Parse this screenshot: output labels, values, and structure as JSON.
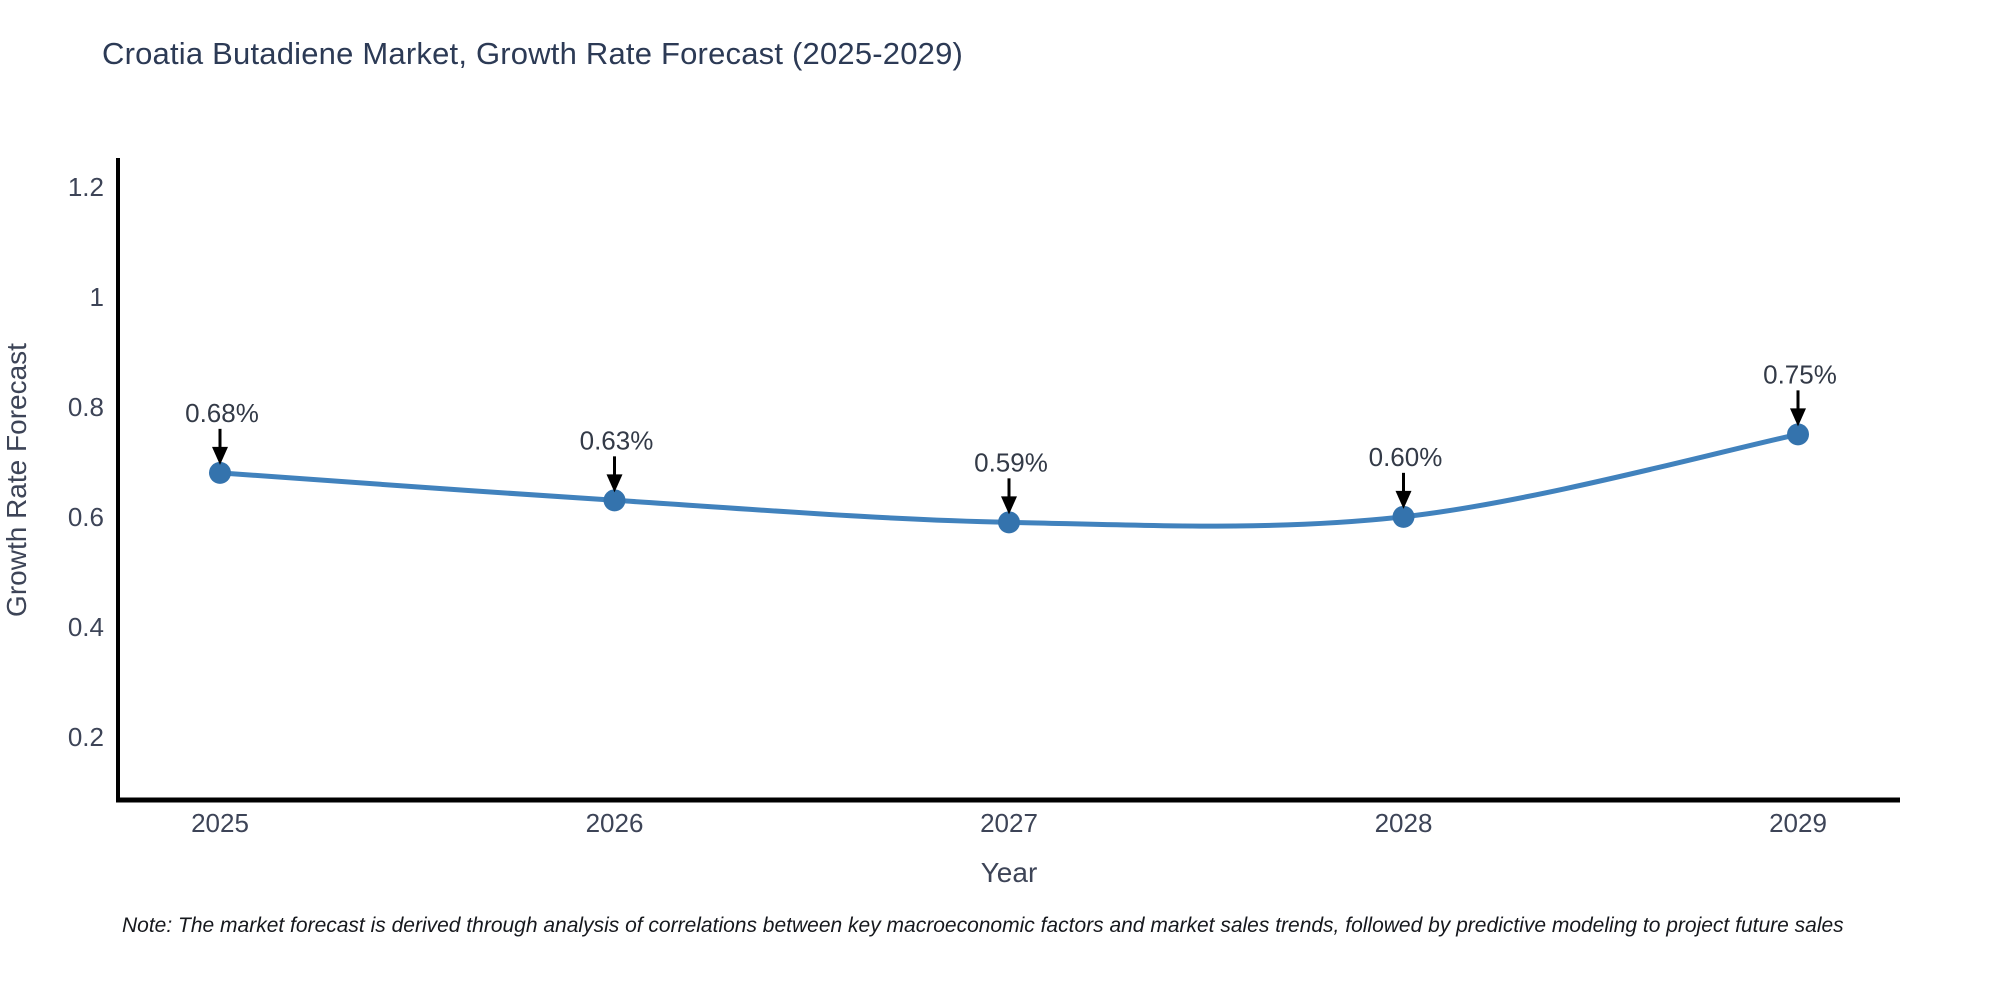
{
  "title": "Croatia Butadiene Market, Growth Rate Forecast (2025-2029)",
  "note": "Note: The market forecast is derived through analysis of correlations between key macroeconomic factors and market sales trends, followed by predictive modeling to project future sales",
  "colors": {
    "line": "#4182bd",
    "marker": "#3473ad",
    "arrow": "#000000",
    "axis": "#000000",
    "title_text": "#2c3a55",
    "tick_text": "#3d4457"
  },
  "chart_data": {
    "type": "line",
    "title": "Croatia Butadiene Market, Growth Rate Forecast (2025-2029)",
    "x": [
      2025,
      2026,
      2027,
      2028,
      2029
    ],
    "series": [
      {
        "name": "Growth Rate Forecast",
        "values": [
          0.68,
          0.63,
          0.59,
          0.6,
          0.75
        ]
      }
    ],
    "point_labels": [
      "0.68%",
      "0.63%",
      "0.59%",
      "0.60%",
      "0.75%"
    ],
    "xlabel": "Year",
    "ylabel": "Growth Rate Forecast",
    "xticklabels": [
      "2025",
      "2026",
      "2027",
      "2028",
      "2029"
    ],
    "yticks": [
      0.2,
      0.4,
      0.6,
      0.8,
      1,
      1.2
    ],
    "ylim": [
      0.085,
      1.249
    ],
    "grid": false,
    "legend_position": "none",
    "smooth": true,
    "annotations_have_arrows": true
  }
}
